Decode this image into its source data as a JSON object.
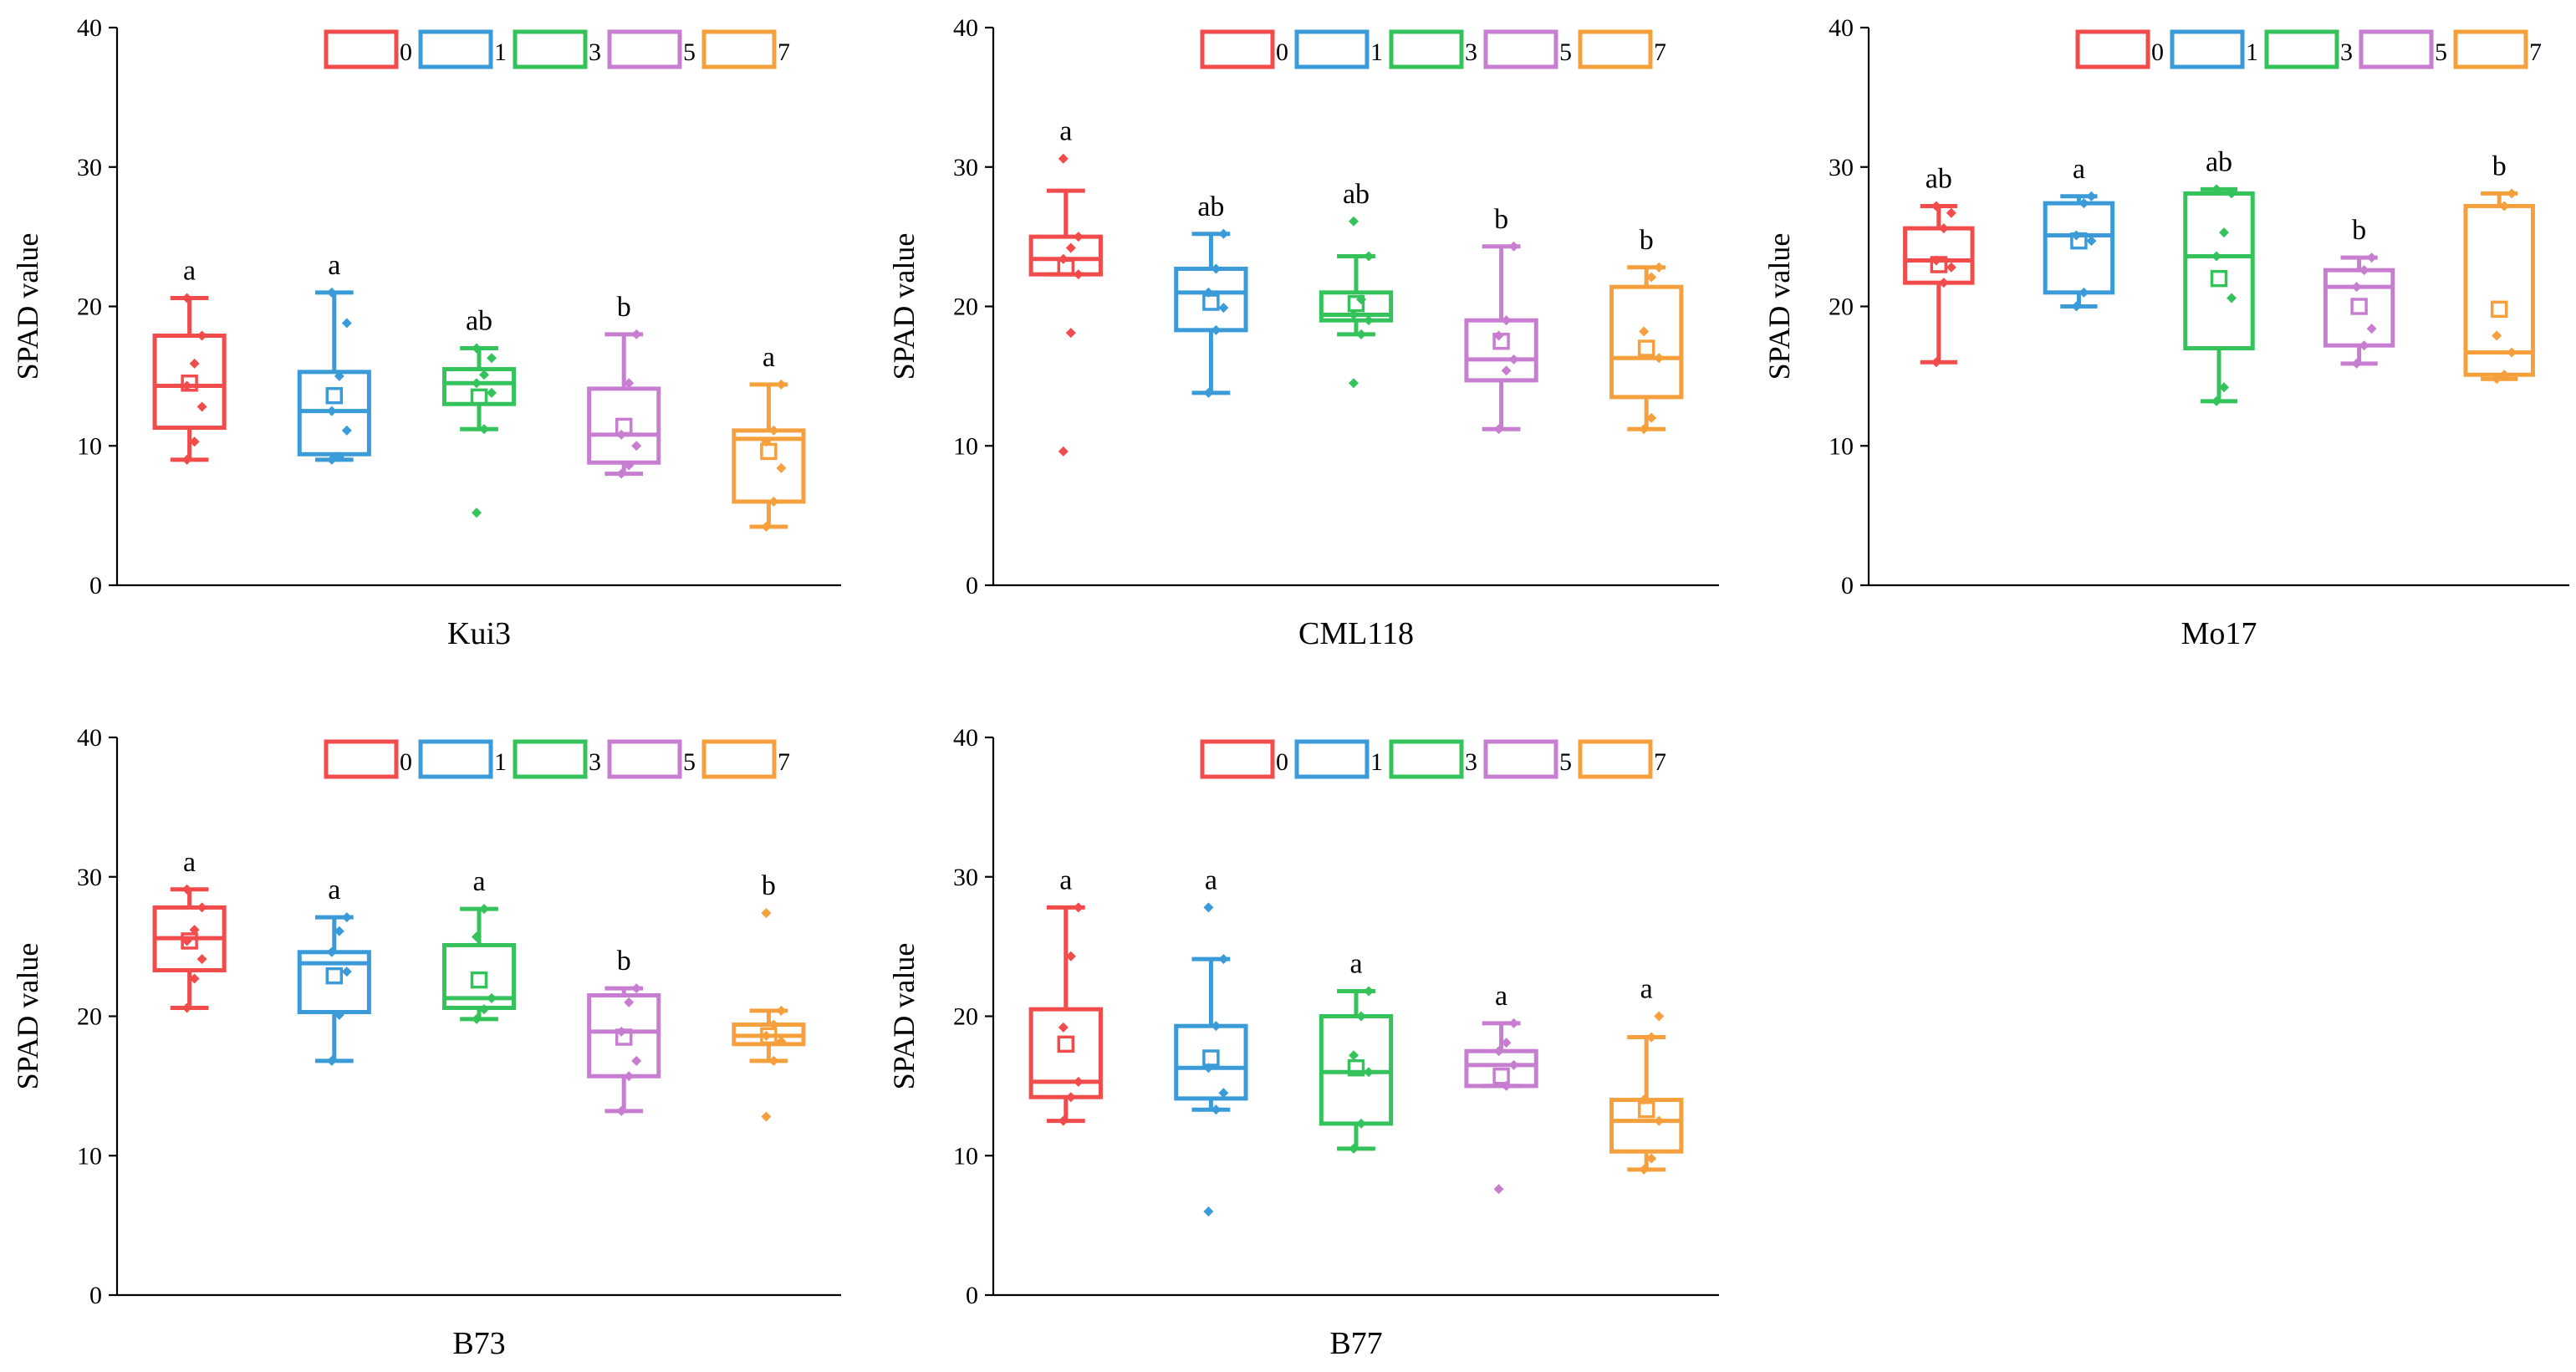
{
  "figure": {
    "y_axis_label": "SPAD value",
    "legend_labels": [
      "0",
      "1",
      "3",
      "5",
      "7"
    ]
  },
  "colors": {
    "0": "#f24b4b",
    "1": "#3a9bd8",
    "3": "#34c35a",
    "5": "#c77ed1",
    "7": "#f5a03c",
    "axis": "#000000"
  },
  "chart_data": [
    {
      "type": "box",
      "title": "Kui3",
      "xlabel": "Kui3",
      "ylabel": "SPAD value",
      "ylim": [
        0,
        40
      ],
      "yticks": [
        0,
        10,
        20,
        30,
        40
      ],
      "legend": [
        "0",
        "1",
        "3",
        "5",
        "7"
      ],
      "legend_position": "top-right",
      "series": [
        {
          "name": "0",
          "min": 9,
          "q1": 11.3,
          "median": 14.3,
          "q3": 17.9,
          "max": 20.6,
          "mean": 14.5,
          "letter": "a",
          "points": [
            9,
            10.3,
            12.8,
            14.3,
            15.9,
            17.9,
            20.6
          ]
        },
        {
          "name": "1",
          "min": 9,
          "q1": 9.4,
          "median": 12.5,
          "q3": 15.3,
          "max": 21,
          "mean": 13.6,
          "letter": "a",
          "points": [
            9,
            9.2,
            11.1,
            12.5,
            15,
            18.8,
            21
          ]
        },
        {
          "name": "3",
          "min": 11.2,
          "q1": 13,
          "median": 14.5,
          "q3": 15.5,
          "max": 17,
          "mean": 13.5,
          "letter": "ab",
          "points": [
            5.2,
            11.2,
            13.8,
            14.5,
            15.1,
            16.3,
            17
          ]
        },
        {
          "name": "5",
          "min": 8,
          "q1": 8.8,
          "median": 10.8,
          "q3": 14.1,
          "max": 18,
          "mean": 11.4,
          "letter": "b",
          "points": [
            8,
            8.6,
            10,
            10.8,
            14.5,
            18
          ]
        },
        {
          "name": "7",
          "min": 4.2,
          "q1": 6,
          "median": 10.5,
          "q3": 11.1,
          "max": 14.4,
          "mean": 9.6,
          "letter": "a",
          "points": [
            4.2,
            6,
            8.4,
            10.3,
            11.1,
            14.4
          ]
        }
      ]
    },
    {
      "type": "box",
      "title": "CML118",
      "xlabel": "CML118",
      "ylabel": "SPAD value",
      "ylim": [
        0,
        40
      ],
      "yticks": [
        0,
        10,
        20,
        30,
        40
      ],
      "legend": [
        "0",
        "1",
        "3",
        "5",
        "7"
      ],
      "legend_position": "top-right",
      "series": [
        {
          "name": "0",
          "min": 22.3,
          "q1": 22.3,
          "median": 23.4,
          "q3": 25,
          "max": 28.3,
          "mean": 22.8,
          "letter": "a",
          "points": [
            9.6,
            18.1,
            22.3,
            23.4,
            24.2,
            25,
            30.6
          ]
        },
        {
          "name": "1",
          "min": 13.8,
          "q1": 18.3,
          "median": 21,
          "q3": 22.7,
          "max": 25.2,
          "mean": 20.3,
          "letter": "ab",
          "points": [
            13.8,
            18.3,
            19.9,
            21,
            22.7,
            25.2
          ]
        },
        {
          "name": "3",
          "min": 18,
          "q1": 19,
          "median": 19.4,
          "q3": 21,
          "max": 23.6,
          "mean": 20.2,
          "letter": "ab",
          "points": [
            14.5,
            18,
            19,
            19.4,
            20.5,
            23.6,
            26.1
          ]
        },
        {
          "name": "5",
          "min": 11.2,
          "q1": 14.7,
          "median": 16.2,
          "q3": 19,
          "max": 24.3,
          "mean": 17.5,
          "letter": "b",
          "points": [
            11.2,
            15.4,
            16.2,
            17.9,
            19,
            24.3
          ]
        },
        {
          "name": "7",
          "min": 11.2,
          "q1": 13.5,
          "median": 16.3,
          "q3": 21.4,
          "max": 22.8,
          "mean": 17,
          "letter": "b",
          "points": [
            11.2,
            12,
            16.3,
            18.2,
            22.1,
            22.8
          ]
        }
      ]
    },
    {
      "type": "box",
      "title": "Mo17",
      "xlabel": "Mo17",
      "ylabel": "SPAD value",
      "ylim": [
        0,
        40
      ],
      "yticks": [
        0,
        10,
        20,
        30,
        40
      ],
      "legend": [
        "0",
        "1",
        "3",
        "5",
        "7"
      ],
      "legend_position": "top-right",
      "series": [
        {
          "name": "0",
          "min": 16,
          "q1": 21.7,
          "median": 23.3,
          "q3": 25.6,
          "max": 27.2,
          "mean": 23,
          "letter": "ab",
          "points": [
            16,
            21.7,
            22.8,
            23.3,
            25.6,
            26.7,
            27.2
          ]
        },
        {
          "name": "1",
          "min": 20,
          "q1": 21,
          "median": 25.1,
          "q3": 27.4,
          "max": 27.9,
          "mean": 24.7,
          "letter": "a",
          "points": [
            20,
            21,
            24.7,
            25.1,
            27.4,
            27.9
          ]
        },
        {
          "name": "3",
          "min": 13.2,
          "q1": 17,
          "median": 23.6,
          "q3": 28.1,
          "max": 28.4,
          "mean": 22,
          "letter": "ab",
          "points": [
            13.2,
            14.2,
            20.6,
            23.6,
            25.3,
            28.1,
            28.4
          ]
        },
        {
          "name": "5",
          "min": 15.9,
          "q1": 17.2,
          "median": 21.4,
          "q3": 22.6,
          "max": 23.5,
          "mean": 20,
          "letter": "b",
          "points": [
            15.9,
            17.2,
            18.4,
            21.4,
            22.6,
            23.5
          ]
        },
        {
          "name": "7",
          "min": 14.8,
          "q1": 15.1,
          "median": 16.7,
          "q3": 27.2,
          "max": 28.1,
          "mean": 19.8,
          "letter": "b",
          "points": [
            14.8,
            15.1,
            16.7,
            17.9,
            27.2,
            28.1
          ]
        }
      ]
    },
    {
      "type": "box",
      "title": "B73",
      "xlabel": "B73",
      "ylabel": "SPAD value",
      "ylim": [
        0,
        40
      ],
      "yticks": [
        0,
        10,
        20,
        30,
        40
      ],
      "legend": [
        "0",
        "1",
        "3",
        "5",
        "7"
      ],
      "legend_position": "top-right",
      "series": [
        {
          "name": "0",
          "min": 20.6,
          "q1": 23.3,
          "median": 25.6,
          "q3": 27.8,
          "max": 29.1,
          "mean": 25.4,
          "letter": "a",
          "points": [
            20.6,
            22.7,
            24.1,
            25.4,
            26.2,
            27.8,
            29.1
          ]
        },
        {
          "name": "1",
          "min": 16.8,
          "q1": 20.3,
          "median": 23.8,
          "q3": 24.6,
          "max": 27.1,
          "mean": 22.9,
          "letter": "a",
          "points": [
            16.8,
            20.1,
            23.2,
            24.6,
            26.1,
            27.1
          ]
        },
        {
          "name": "3",
          "min": 19.8,
          "q1": 20.6,
          "median": 21.3,
          "q3": 25.1,
          "max": 27.7,
          "mean": 22.6,
          "letter": "a",
          "points": [
            19.8,
            20.5,
            21.3,
            25.7,
            27.7
          ]
        },
        {
          "name": "5",
          "min": 13.2,
          "q1": 15.7,
          "median": 18.9,
          "q3": 21.5,
          "max": 22,
          "mean": 18.5,
          "letter": "b",
          "points": [
            13.2,
            15.7,
            16.8,
            18.9,
            21,
            22
          ]
        },
        {
          "name": "7",
          "min": 16.8,
          "q1": 18,
          "median": 18.6,
          "q3": 19.4,
          "max": 20.4,
          "mean": 18.6,
          "letter": "b",
          "points": [
            12.8,
            16.8,
            18.2,
            18.6,
            19.4,
            20.4,
            27.4
          ]
        }
      ]
    },
    {
      "type": "box",
      "title": "B77",
      "xlabel": "B77",
      "ylabel": "SPAD value",
      "ylim": [
        0,
        40
      ],
      "yticks": [
        0,
        10,
        20,
        30,
        40
      ],
      "legend": [
        "0",
        "1",
        "3",
        "5",
        "7"
      ],
      "legend_position": "top-right",
      "series": [
        {
          "name": "0",
          "min": 12.5,
          "q1": 14.2,
          "median": 15.3,
          "q3": 20.5,
          "max": 27.8,
          "mean": 18,
          "letter": "a",
          "points": [
            12.5,
            14.2,
            15.3,
            19.2,
            24.3,
            27.8
          ]
        },
        {
          "name": "1",
          "min": 13.3,
          "q1": 14.1,
          "median": 16.3,
          "q3": 19.3,
          "max": 24.1,
          "mean": 17,
          "letter": "a",
          "points": [
            6,
            13.3,
            14.5,
            16.3,
            19.3,
            24.1,
            27.8
          ]
        },
        {
          "name": "3",
          "min": 10.5,
          "q1": 12.3,
          "median": 16,
          "q3": 20,
          "max": 21.8,
          "mean": 16.3,
          "letter": "a",
          "points": [
            10.5,
            12.3,
            16,
            17.2,
            20,
            21.8
          ]
        },
        {
          "name": "5",
          "min": 15,
          "q1": 15,
          "median": 16.5,
          "q3": 17.5,
          "max": 19.5,
          "mean": 15.7,
          "letter": "a",
          "points": [
            7.6,
            15,
            16.5,
            17.5,
            18.1,
            19.5
          ]
        },
        {
          "name": "7",
          "min": 9,
          "q1": 10.3,
          "median": 12.5,
          "q3": 14,
          "max": 18.5,
          "mean": 13.3,
          "letter": "a",
          "points": [
            9,
            9.8,
            12.5,
            14,
            18.5,
            20
          ]
        }
      ]
    }
  ]
}
